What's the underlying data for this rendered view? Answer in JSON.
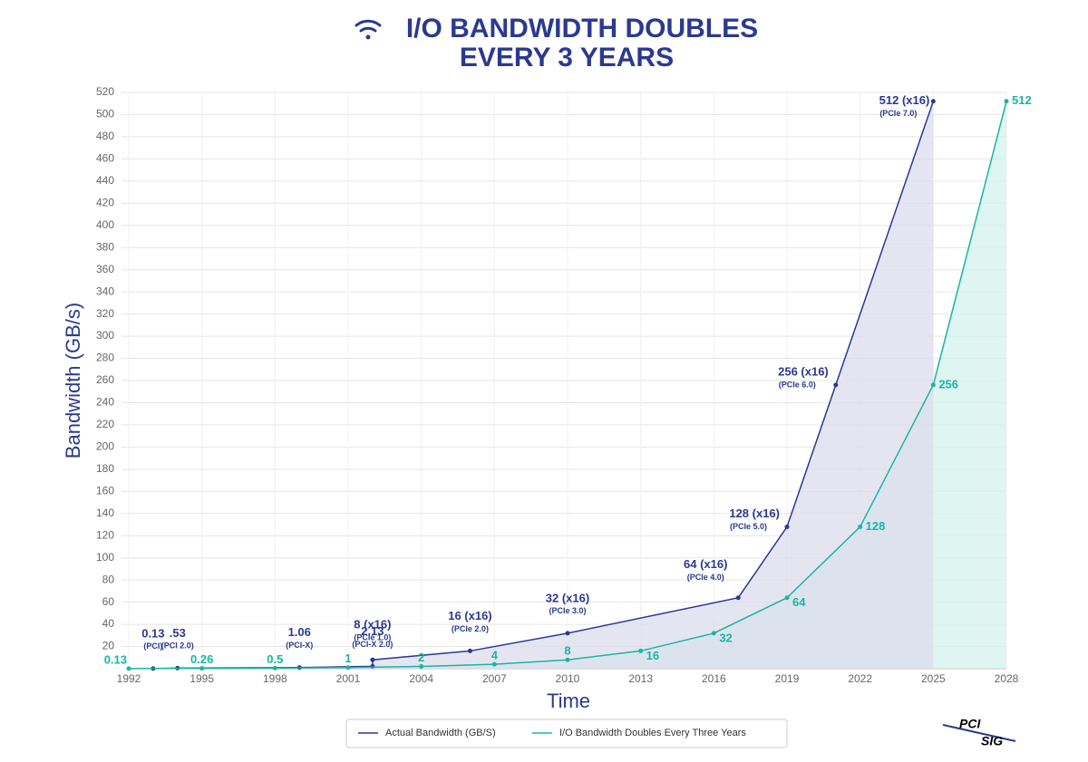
{
  "chart_data": {
    "type": "line",
    "title": "I/O BANDWIDTH DOUBLES",
    "subtitle": "EVERY 3 YEARS",
    "x_label": "Time",
    "y_label": "Bandwidth (GB/s)",
    "xlim": [
      1992,
      2028
    ],
    "xticks": [
      1992,
      1995,
      1998,
      2001,
      2004,
      2007,
      2010,
      2013,
      2016,
      2019,
      2022,
      2025,
      2028
    ],
    "ylim": [
      0,
      520
    ],
    "yticks": [
      20,
      40,
      60,
      80,
      100,
      120,
      140,
      160,
      180,
      200,
      220,
      240,
      260,
      280,
      300,
      320,
      340,
      360,
      380,
      400,
      420,
      440,
      460,
      480,
      500,
      520
    ],
    "grid": true,
    "series": [
      {
        "name": "Actual Bandwidth (GB/S)",
        "color": "#2b3990",
        "fill": "#dcdcec",
        "x": [
          1993,
          1994,
          1999,
          2002,
          2002,
          2006,
          2010,
          2017,
          2019,
          2021,
          2025
        ],
        "values": [
          0.13,
          0.53,
          1.06,
          2.13,
          8,
          16,
          32,
          64,
          128,
          256,
          512
        ],
        "value_labels": [
          "0.13",
          ".53",
          "1.06",
          "2.13",
          "8 (x16)",
          "16 (x16)",
          "32 (x16)",
          "64 (x16)",
          "128 (x16)",
          "256 (x16)",
          "512 (x16)"
        ],
        "sublabels": [
          "(PCI)",
          "(PCI 2.0)",
          "(PCI-X)",
          "(PCI-X 2.0)",
          "(PCIe 1.0)",
          "(PCIe 2.0)",
          "(PCIe 3.0)",
          "(PCIe 4.0)",
          "(PCIe 5.0)",
          "(PCIe 6.0)",
          "(PCIe 7.0)"
        ]
      },
      {
        "name": "I/O Bandwidth Doubles Every Three Years",
        "color": "#1ab5a3",
        "fill": "#d3f1ec",
        "x": [
          1992,
          1995,
          1998,
          2001,
          2004,
          2007,
          2010,
          2013,
          2016,
          2019,
          2022,
          2025,
          2028
        ],
        "values": [
          0.13,
          0.26,
          0.5,
          1,
          2,
          4,
          8,
          16,
          32,
          64,
          128,
          256,
          512
        ]
      }
    ],
    "logo": [
      "PCI",
      "SIG"
    ]
  }
}
